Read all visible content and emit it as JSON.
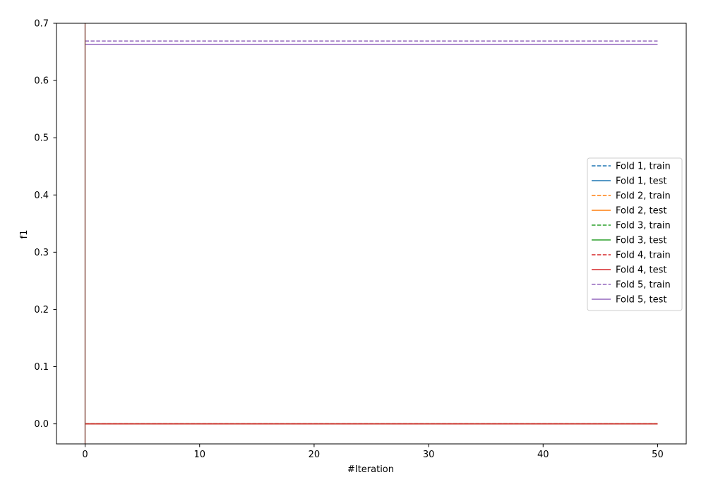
{
  "chart_data": {
    "type": "line",
    "title": "",
    "xlabel": "#Iteration",
    "ylabel": "f1",
    "xlim": [
      -2.5,
      52.5
    ],
    "ylim": [
      -0.035,
      0.7
    ],
    "xticks": [
      0,
      10,
      20,
      30,
      40,
      50
    ],
    "xtick_labels": [
      "0",
      "10",
      "20",
      "30",
      "40",
      "50"
    ],
    "yticks": [
      0.0,
      0.1,
      0.2,
      0.3,
      0.4,
      0.5,
      0.6,
      0.7
    ],
    "ytick_labels": [
      "0.0",
      "0.1",
      "0.2",
      "0.3",
      "0.4",
      "0.5",
      "0.6",
      "0.7"
    ],
    "grid": false,
    "legend_position": "center-right",
    "x_range": [
      0,
      50
    ],
    "series": [
      {
        "name": "Fold 1, train",
        "color": "#1f77b4",
        "style": "dashed",
        "y": 0.0
      },
      {
        "name": "Fold 1, test",
        "color": "#1f77b4",
        "style": "solid",
        "y": 0.0
      },
      {
        "name": "Fold 2, train",
        "color": "#ff7f0e",
        "style": "dashed",
        "y": 0.0
      },
      {
        "name": "Fold 2, test",
        "color": "#ff7f0e",
        "style": "solid",
        "y": 0.0
      },
      {
        "name": "Fold 3, train",
        "color": "#2ca02c",
        "style": "dashed",
        "y": 0.0
      },
      {
        "name": "Fold 3, test",
        "color": "#2ca02c",
        "style": "solid",
        "y": 0.0
      },
      {
        "name": "Fold 4, train",
        "color": "#d62728",
        "style": "dashed",
        "y": 0.0
      },
      {
        "name": "Fold 4, test",
        "color": "#d62728",
        "style": "solid",
        "y": 0.0
      },
      {
        "name": "Fold 5, train",
        "color": "#9467bd",
        "style": "dashed",
        "y": 0.669
      },
      {
        "name": "Fold 5, test",
        "color": "#9467bd",
        "style": "solid",
        "y": 0.663
      }
    ],
    "vertical_line": {
      "x": 0,
      "color": "#8c564b"
    }
  }
}
